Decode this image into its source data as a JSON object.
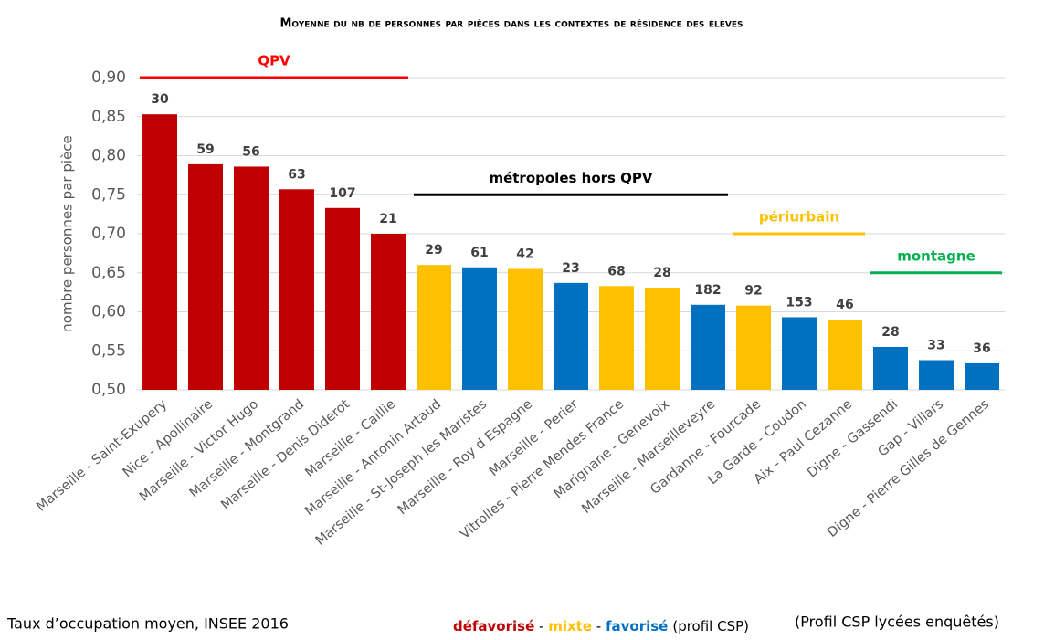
{
  "chart_data": {
    "type": "bar",
    "title": "Moyenne du nb de personnes par pièces dans les contextes de résidence des élèves",
    "ylabel": "nombre personnes par pièce",
    "categories": [
      "Marseille - Saint-Exupery",
      "Nice - Apollinaire",
      "Marseille - Victor Hugo",
      "Marseille - Montgrand",
      "Marseille - Denis Diderot",
      "Marseille - Caillie",
      "Marseille - Antonin Artaud",
      "Marseille - St-Joseph les Maristes",
      "Marseille - Roy d Espagne",
      "Marseille - Perier",
      "Vitrolles - Pierre Mendes France",
      "Marignane - Genevoix",
      "Marseille - Marseilleveyre",
      "Gardanne - Fourcade",
      "La Garde - Coudon",
      "Aix - Paul Cezanne",
      "Digne - Gassendi",
      "Gap - Villars",
      "Digne - Pierre Gilles de Gennes"
    ],
    "values": [
      0.853,
      0.789,
      0.786,
      0.757,
      0.733,
      0.7,
      0.66,
      0.657,
      0.655,
      0.637,
      0.633,
      0.631,
      0.609,
      0.608,
      0.593,
      0.59,
      0.555,
      0.538,
      0.534
    ],
    "sample_sizes": [
      30,
      59,
      56,
      63,
      107,
      21,
      29,
      61,
      42,
      23,
      68,
      28,
      182,
      92,
      153,
      46,
      28,
      33,
      36
    ],
    "colors": [
      "#c00000",
      "#c00000",
      "#c00000",
      "#c00000",
      "#c00000",
      "#c00000",
      "#ffc000",
      "#0070c0",
      "#ffc000",
      "#0070c0",
      "#ffc000",
      "#ffc000",
      "#0070c0",
      "#ffc000",
      "#0070c0",
      "#ffc000",
      "#0070c0",
      "#0070c0",
      "#0070c0"
    ],
    "ylim": [
      0.5,
      0.9
    ],
    "yticks": [
      {
        "value": 0.5,
        "label": "0,50"
      },
      {
        "value": 0.55,
        "label": "0,55"
      },
      {
        "value": 0.6,
        "label": "0,60"
      },
      {
        "value": 0.65,
        "label": "0,65"
      },
      {
        "value": 0.7,
        "label": "0,70"
      },
      {
        "value": 0.75,
        "label": "0,75"
      },
      {
        "value": 0.8,
        "label": "0,80"
      },
      {
        "value": 0.85,
        "label": "0,85"
      },
      {
        "value": 0.9,
        "label": "0,90"
      }
    ],
    "grid": true,
    "groups": [
      {
        "label": "QPV",
        "color": "#ff0000",
        "start": 0,
        "end": 5,
        "y": 0.9
      },
      {
        "label": "métropoles hors QPV",
        "color": "#000000",
        "start": 6,
        "end": 12,
        "y": 0.75
      },
      {
        "label": "périurbain",
        "color": "#ffc000",
        "start": 13,
        "end": 15,
        "y": 0.7
      },
      {
        "label": "montagne",
        "color": "#00b050",
        "start": 16,
        "end": 18,
        "y": 0.65
      }
    ],
    "legend": [
      {
        "name": "défavorisé",
        "color": "#c00000"
      },
      {
        "name": "mixte",
        "color": "#ffc000"
      },
      {
        "name": "favorisé",
        "color": "#0070c0"
      }
    ],
    "legend_note": "(profil CSP)",
    "source": "Taux d’occupation moyen, INSEE 2016",
    "note": "(Profil CSP lycées enquêtés)"
  }
}
